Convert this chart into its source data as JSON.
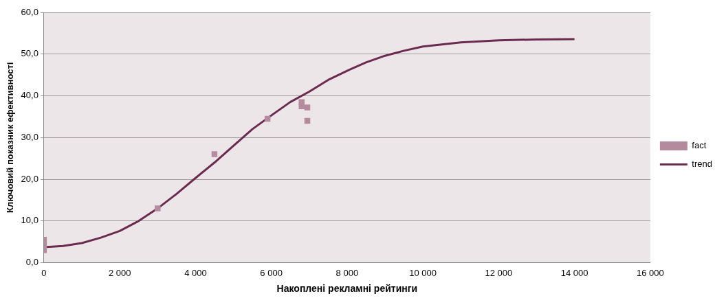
{
  "chart_data": {
    "type": "scatter",
    "xlabel": "Накоплені рекламні рейтинги",
    "ylabel": "Ключовий показник ефективності",
    "xlim": [
      0,
      16000
    ],
    "xticks": [
      0,
      {
        "value": 2000,
        "label": "2 000"
      },
      {
        "value": 4000,
        "label": "4 000"
      },
      {
        "value": 6000,
        "label": "6 000"
      },
      {
        "value": 8000,
        "label": "8 000"
      },
      {
        "value": 10000,
        "label": "10 000"
      },
      {
        "value": 12000,
        "label": "12 000"
      },
      {
        "value": 14000,
        "label": "14 000"
      },
      {
        "value": 16000,
        "label": "16 000"
      }
    ],
    "ylim": [
      0,
      60
    ],
    "yticks": [
      {
        "value": 0,
        "label": "0,0"
      },
      {
        "value": 10,
        "label": "10,0"
      },
      {
        "value": 20,
        "label": "20,0"
      },
      {
        "value": 30,
        "label": "30,0"
      },
      {
        "value": 40,
        "label": "40,0"
      },
      {
        "value": 50,
        "label": "50,0"
      },
      {
        "value": 60,
        "label": "60,0"
      }
    ],
    "grid": "y",
    "legend": "right",
    "series": [
      {
        "name": "fact",
        "type": "scatter",
        "marker": "square",
        "color": "#b48a9e",
        "x": [
          0,
          0,
          0,
          3000,
          4500,
          5900,
          6800,
          6800,
          6950,
          6950
        ],
        "values": [
          5.5,
          4.2,
          3.0,
          13,
          26,
          34.5,
          38.5,
          37.5,
          37.2,
          34.0
        ]
      },
      {
        "name": "trend",
        "type": "line",
        "marker": "none",
        "color": "#6b2b4f",
        "x": [
          0,
          500,
          1000,
          1500,
          2000,
          2500,
          3000,
          3500,
          4000,
          4500,
          5000,
          5500,
          6000,
          6500,
          7000,
          7500,
          8000,
          8500,
          9000,
          9500,
          10000,
          11000,
          12000,
          13000,
          14000
        ],
        "values": [
          3.7,
          4.0,
          4.7,
          6.0,
          7.6,
          10.0,
          13.0,
          16.5,
          20.3,
          24.0,
          28.0,
          32.0,
          35.3,
          38.5,
          41.0,
          43.8,
          46.0,
          48.0,
          49.6,
          50.8,
          51.8,
          52.8,
          53.3,
          53.5,
          53.6
        ]
      }
    ]
  }
}
